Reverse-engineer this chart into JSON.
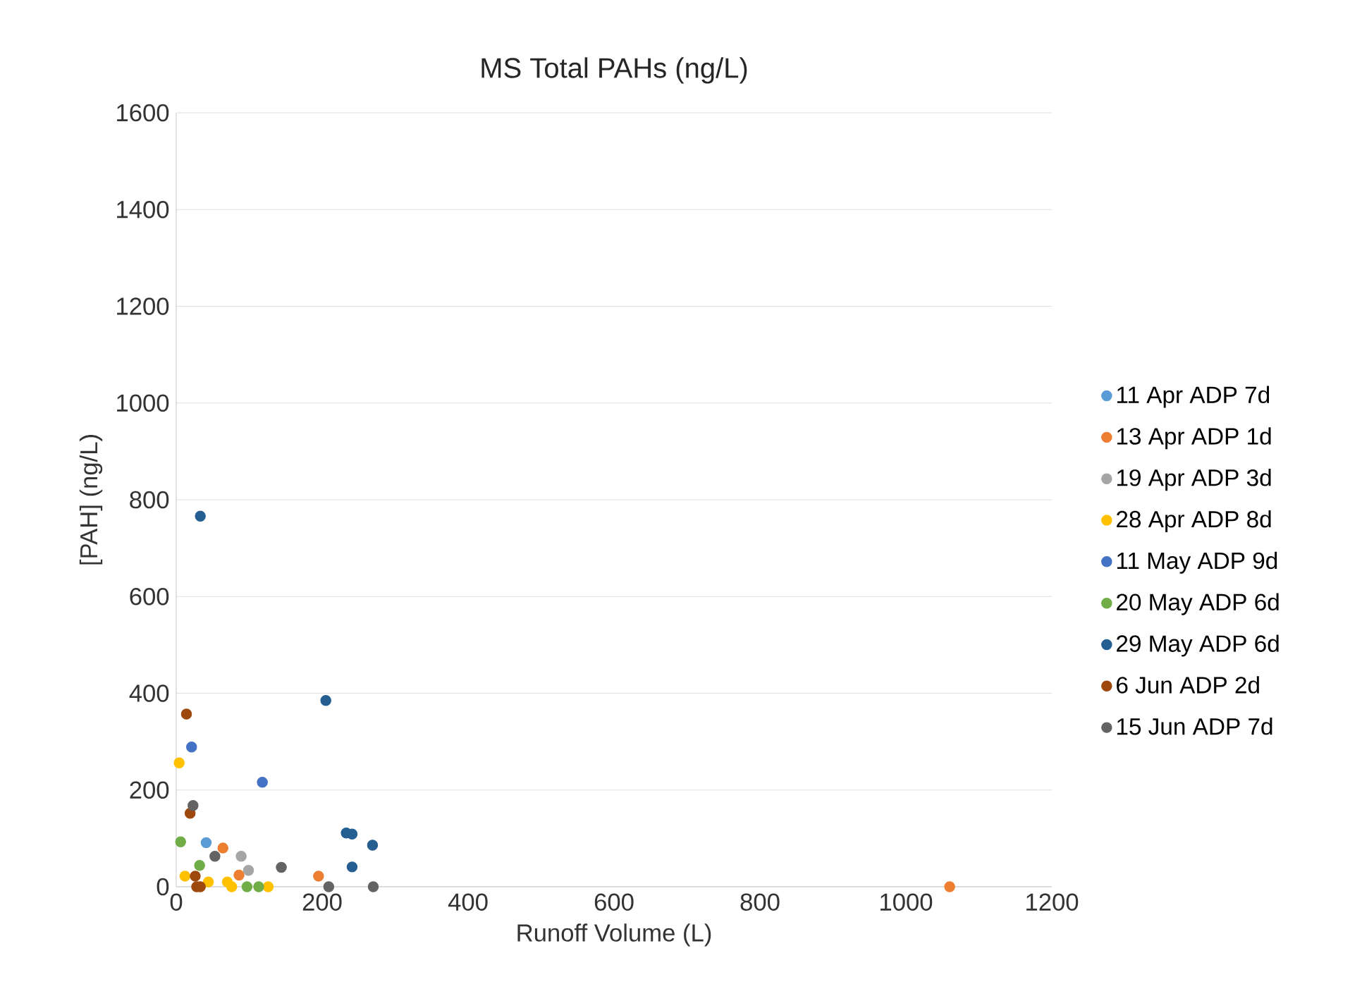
{
  "chart_data": {
    "type": "scatter",
    "title": "MS Total PAHs (ng/L)",
    "xlabel": "Runoff Volume (L)",
    "ylabel": "[PAH] (ng/L)",
    "xlim": [
      0,
      1200
    ],
    "ylim": [
      0,
      1600
    ],
    "xticks": [
      0,
      200,
      400,
      600,
      800,
      1000,
      1200
    ],
    "yticks": [
      0,
      200,
      400,
      600,
      800,
      1000,
      1200,
      1400,
      1600
    ],
    "grid": "y",
    "legend": "right",
    "marker": "circle",
    "series": [
      {
        "name": "11 Apr ADP 7d",
        "color": "#5b9bd5",
        "x": [
          41
        ],
        "values": [
          91
        ]
      },
      {
        "name": "13 Apr ADP 1d",
        "color": "#ed7d31",
        "x": [
          64,
          86,
          195,
          1060
        ],
        "values": [
          80,
          24,
          22,
          0
        ]
      },
      {
        "name": "19 Apr ADP 3d",
        "color": "#a5a5a5",
        "x": [
          89,
          99
        ],
        "values": [
          63,
          34
        ]
      },
      {
        "name": "28 Apr ADP 8d",
        "color": "#ffc000",
        "x": [
          4,
          12,
          44,
          70,
          76,
          126
        ],
        "values": [
          256,
          22,
          10,
          10,
          0,
          0
        ]
      },
      {
        "name": "11 May ADP 9d",
        "color": "#4472c4",
        "x": [
          21,
          118
        ],
        "values": [
          289,
          216
        ]
      },
      {
        "name": "20 May ADP 6d",
        "color": "#70ad47",
        "x": [
          6,
          32,
          97,
          113
        ],
        "values": [
          93,
          44,
          0,
          0
        ]
      },
      {
        "name": "29 May ADP 6d",
        "color": "#255e91",
        "x": [
          33,
          205,
          233,
          241,
          269,
          241
        ],
        "values": [
          766,
          385,
          111,
          109,
          86,
          41
        ]
      },
      {
        "name": "6 Jun ADP 2d",
        "color": "#9e480e",
        "x": [
          14,
          19,
          26,
          28,
          33
        ],
        "values": [
          357,
          152,
          22,
          0,
          0
        ]
      },
      {
        "name": "15 Jun ADP 7d",
        "color": "#636363",
        "x": [
          23,
          53,
          144,
          209,
          270
        ],
        "values": [
          168,
          63,
          40,
          0,
          0
        ]
      }
    ]
  }
}
